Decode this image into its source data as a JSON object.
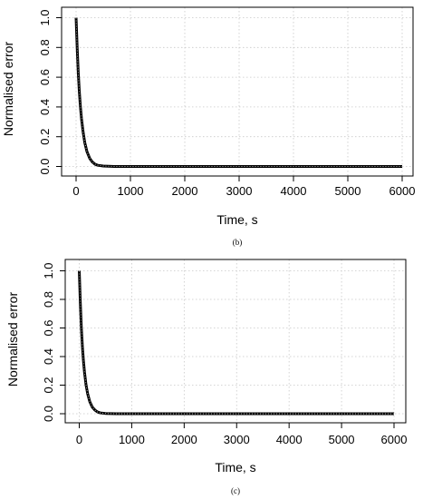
{
  "chart_data": [
    {
      "type": "line",
      "caption": "(b)",
      "xlabel": "Time, s",
      "ylabel": "Normalised error",
      "xlim": [
        0,
        6000
      ],
      "ylim": [
        0,
        1
      ],
      "x_ticks": [
        0,
        1000,
        2000,
        3000,
        4000,
        5000,
        6000
      ],
      "y_ticks": [
        "0.0",
        "0.2",
        "0.4",
        "0.6",
        "0.8",
        "1.0"
      ],
      "grid": true,
      "series": [
        {
          "x": [
            0,
            20,
            40,
            60,
            80,
            100,
            130,
            160,
            200,
            250,
            300,
            350,
            400,
            500,
            700,
            1000,
            2000,
            3000,
            4000,
            5000,
            6000
          ],
          "values": [
            1.0,
            0.8,
            0.63,
            0.5,
            0.4,
            0.32,
            0.23,
            0.16,
            0.1,
            0.055,
            0.03,
            0.015,
            0.008,
            0.003,
            0.0,
            0.0,
            0.0,
            0.0,
            0.0,
            0.0,
            0.0
          ]
        }
      ]
    },
    {
      "type": "line",
      "caption": "(c)",
      "xlabel": "Time, s",
      "ylabel": "Normalised error",
      "xlim": [
        0,
        6000
      ],
      "ylim": [
        0,
        1
      ],
      "x_ticks": [
        0,
        1000,
        2000,
        3000,
        4000,
        5000,
        6000
      ],
      "y_ticks": [
        "0.0",
        "0.2",
        "0.4",
        "0.6",
        "0.8",
        "1.0"
      ],
      "grid": true,
      "series": [
        {
          "x": [
            0,
            20,
            40,
            60,
            80,
            100,
            130,
            160,
            200,
            250,
            300,
            350,
            400,
            500,
            700,
            1000,
            2000,
            3000,
            4000,
            5000,
            6000
          ],
          "values": [
            1.0,
            0.78,
            0.6,
            0.47,
            0.37,
            0.29,
            0.2,
            0.14,
            0.085,
            0.045,
            0.025,
            0.012,
            0.006,
            0.002,
            0.0,
            0.0,
            0.0,
            0.0,
            0.0,
            0.0,
            0.0
          ]
        }
      ]
    }
  ]
}
